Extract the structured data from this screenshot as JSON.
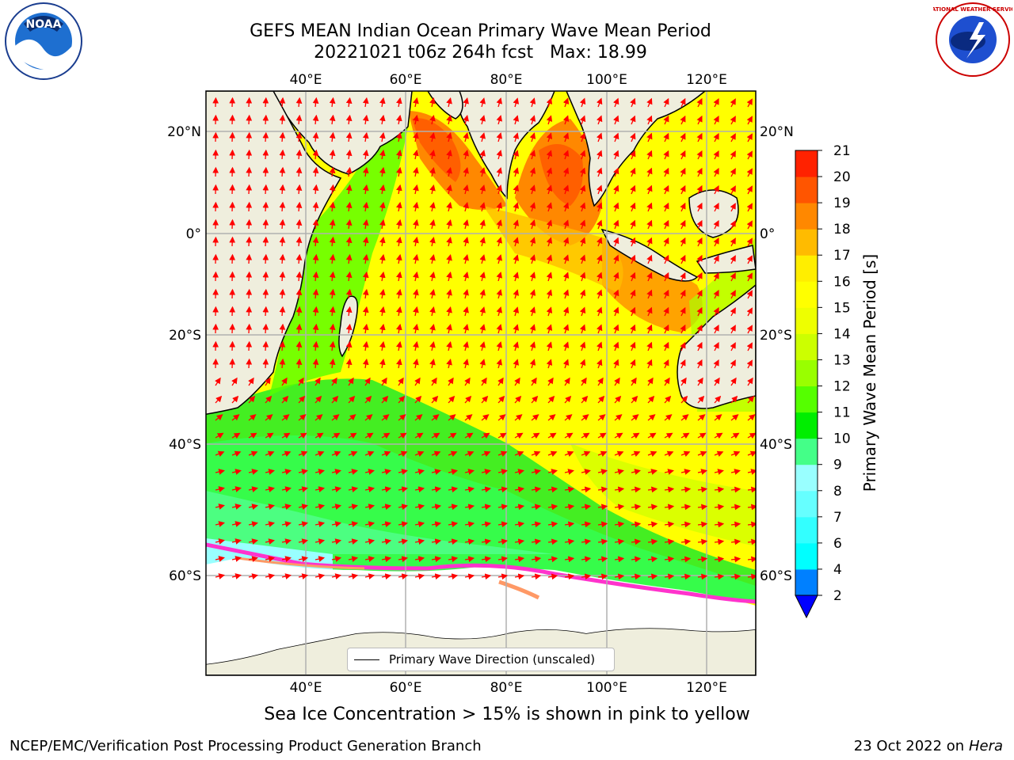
{
  "header": {
    "title_line1": "GEFS MEAN Indian Ocean Primary Wave Mean Period",
    "title_line2": "20221021 t06z 264h fcst   Max: 18.99"
  },
  "logos": {
    "left_text": "NOAA",
    "right_text": "NATIONAL WEATHER SERVICE"
  },
  "map": {
    "lon_labels": [
      "40°E",
      "60°E",
      "80°E",
      "100°E",
      "120°E"
    ],
    "lat_labels": [
      "20°N",
      "0°",
      "20°S",
      "40°S",
      "60°S"
    ],
    "ocean_base_color": "#ffff00",
    "land_color": "#efeedd",
    "arrow_color": "#ff0000"
  },
  "colorbar": {
    "label": "Primary Wave Mean Period [s]",
    "ticks": [
      "2",
      "4",
      "6",
      "7",
      "8",
      "9",
      "10",
      "11",
      "12",
      "13",
      "14",
      "15",
      "16",
      "17",
      "18",
      "19",
      "20",
      "21"
    ],
    "colors": [
      "#0080ff",
      "#00ffff",
      "#33ffff",
      "#66ffff",
      "#99ffff",
      "#44ff88",
      "#00ee00",
      "#55ff00",
      "#99ff00",
      "#ccff00",
      "#eeff00",
      "#ffff00",
      "#ffee00",
      "#ffbb00",
      "#ff8800",
      "#ff5500",
      "#ff2200"
    ],
    "extend_color": "#0000ff"
  },
  "legend": {
    "label": "Primary Wave Direction (unscaled)"
  },
  "caption": "Sea Ice Concentration > 15% is shown in pink to yellow",
  "footer": {
    "left": "NCEP/EMC/Verification Post Processing Product Generation Branch",
    "right_date": "23 Oct 2022 on ",
    "right_machine": "Hera"
  }
}
